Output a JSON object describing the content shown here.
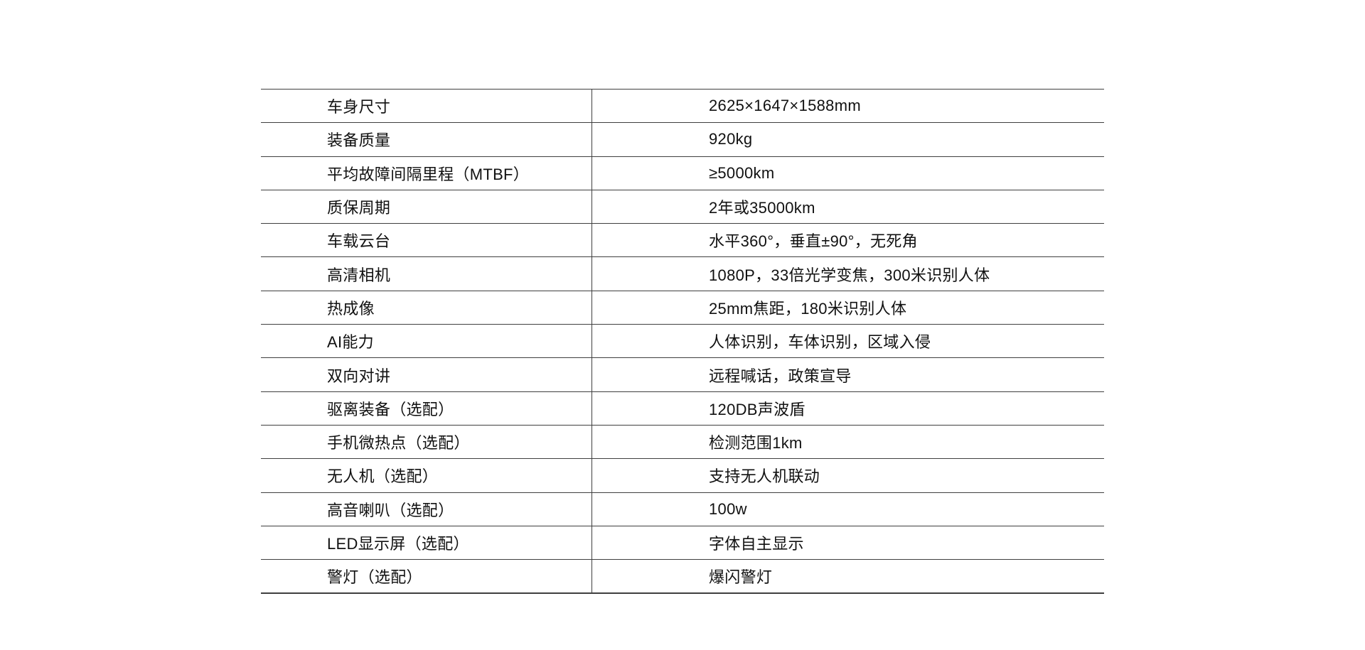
{
  "colors": {
    "background": "#ffffff",
    "line": "#3f3f3f",
    "text": "#111111"
  },
  "spec_table": {
    "rows": [
      {
        "label": "车身尺寸",
        "value": "2625×1647×1588mm"
      },
      {
        "label": "装备质量",
        "value": "920kg"
      },
      {
        "label": "平均故障间隔里程（MTBF）",
        "value": "≥5000km"
      },
      {
        "label": "质保周期",
        "value": "2年或35000km"
      },
      {
        "label": "车载云台",
        "value": "水平360°，垂直±90°，无死角"
      },
      {
        "label": "高清相机",
        "value": "1080P，33倍光学变焦，300米识别人体"
      },
      {
        "label": "热成像",
        "value": "25mm焦距，180米识别人体"
      },
      {
        "label": "AI能力",
        "value": "人体识别，车体识别，区域入侵"
      },
      {
        "label": "双向对讲",
        "value": "远程喊话，政策宣导"
      },
      {
        "label": "驱离装备（选配）",
        "value": "120DB声波盾"
      },
      {
        "label": "手机微热点（选配）",
        "value": "检测范围1km"
      },
      {
        "label": "无人机（选配）",
        "value": "支持无人机联动"
      },
      {
        "label": "高音喇叭（选配）",
        "value": "100w"
      },
      {
        "label": "LED显示屏（选配）",
        "value": "字体自主显示"
      },
      {
        "label": "警灯（选配）",
        "value": "爆闪警灯"
      }
    ]
  }
}
